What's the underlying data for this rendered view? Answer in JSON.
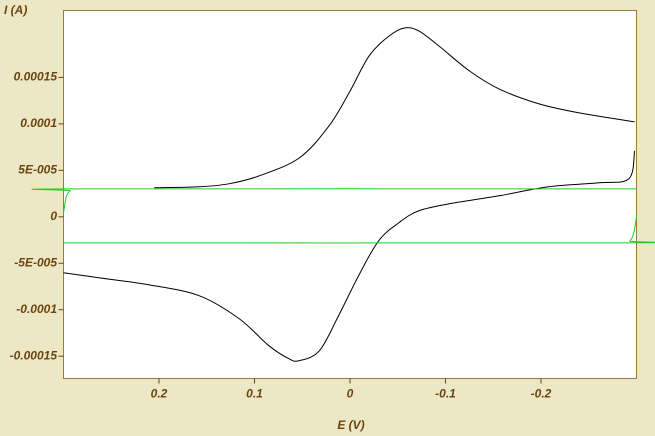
{
  "chart_data": {
    "type": "line",
    "xlabel": "E (V)",
    "ylabel": "I (A)",
    "xlim": [
      0.3,
      -0.3
    ],
    "ylim": [
      -0.000174,
      0.000222
    ],
    "xticks": [
      0.2,
      0.1,
      0,
      -0.1,
      -0.2
    ],
    "yticks": [
      0.00015,
      0.0001,
      {
        "value": 5e-05,
        "label": "5E-005"
      },
      0,
      {
        "value": -5e-05,
        "label": "-5E-005"
      },
      -0.0001,
      -0.00015
    ],
    "series": [
      {
        "color": "#000000",
        "x": [
          0.205,
          0.158,
          0.127,
          0.095,
          0.053,
          0.022,
          0.001,
          -0.02,
          -0.041,
          -0.057,
          -0.072,
          -0.093,
          -0.125,
          -0.156,
          -0.198,
          -0.24,
          -0.298
        ],
        "values": [
          3.12e-05,
          3.23e-05,
          3.55e-05,
          4.41e-05,
          6.34e-05,
          9.78e-05,
          0.0001333,
          0.0001731,
          0.0001946,
          0.0002032,
          0.0002,
          0.0001839,
          0.000157,
          0.0001376,
          0.0001215,
          0.0001118,
          0.0001022
        ]
      },
      {
        "color": "#000000",
        "x": [
          -0.298,
          -0.292,
          -0.261,
          -0.208,
          -0.156,
          -0.104,
          -0.072,
          -0.051,
          -0.03,
          -0.009,
          0.012,
          0.032,
          0.053,
          0.064,
          0.085,
          0.116,
          0.158,
          0.211,
          0.263,
          0.3
        ],
        "values": [
          7.1e-05,
          4.09e-05,
          3.66e-05,
          3.23e-05,
          2.26e-05,
          1.4e-05,
          6.5e-06,
          -6.5e-06,
          -2.58e-05,
          -6.34e-05,
          -0.0001065,
          -0.0001441,
          -0.0001548,
          -0.0001527,
          -0.0001387,
          -0.0001097,
          -8.49e-05,
          -7.31e-05,
          -6.56e-05,
          -6.02e-05
        ]
      },
      {
        "color": "#22cc22",
        "x": [
          0.3,
          0.297,
          0.293,
          0.288,
          -0.3
        ],
        "values": [
          4e-06,
          2.2e-05,
          2.8e-05,
          3e-05,
          3e-05
        ]
      },
      {
        "color": "#22cc22",
        "x": [
          -0.3,
          -0.297,
          -0.293,
          -0.288,
          0.3
        ],
        "values": [
          0,
          -1.8e-05,
          -2.6e-05,
          -2.8e-05,
          -2.8e-05
        ]
      }
    ]
  }
}
